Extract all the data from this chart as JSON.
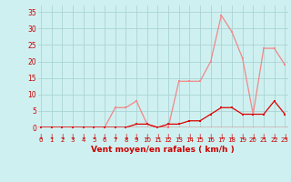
{
  "x": [
    0,
    1,
    2,
    3,
    4,
    5,
    6,
    7,
    8,
    9,
    10,
    11,
    12,
    13,
    14,
    15,
    16,
    17,
    18,
    19,
    20,
    21,
    22,
    23
  ],
  "wind_avg": [
    0,
    0,
    0,
    0,
    0,
    0,
    0,
    6,
    6,
    8,
    1,
    0,
    0,
    14,
    14,
    14,
    20,
    34,
    29,
    21,
    4,
    24,
    24,
    19
  ],
  "wind_gust": [
    0,
    0,
    0,
    0,
    0,
    0,
    0,
    0,
    0,
    1,
    1,
    0,
    1,
    1,
    2,
    2,
    4,
    6,
    6,
    4,
    4,
    4,
    8,
    4
  ],
  "bg_color": "#cff0f0",
  "grid_color": "#aad4d4",
  "line_color_avg": "#f08888",
  "line_color_gust": "#dd0000",
  "marker_color_avg": "#f08888",
  "marker_color_gust": "#dd0000",
  "xlabel": "Vent moyen/en rafales ( km/h )",
  "xlabel_color": "#cc0000",
  "tick_color": "#cc0000",
  "arrow_color": "#cc0000",
  "ylim": [
    0,
    37
  ],
  "xlim": [
    -0.3,
    23.3
  ],
  "yticks": [
    0,
    5,
    10,
    15,
    20,
    25,
    30,
    35
  ],
  "xticks": [
    0,
    1,
    2,
    3,
    4,
    5,
    6,
    7,
    8,
    9,
    10,
    11,
    12,
    13,
    14,
    15,
    16,
    17,
    18,
    19,
    20,
    21,
    22,
    23
  ]
}
